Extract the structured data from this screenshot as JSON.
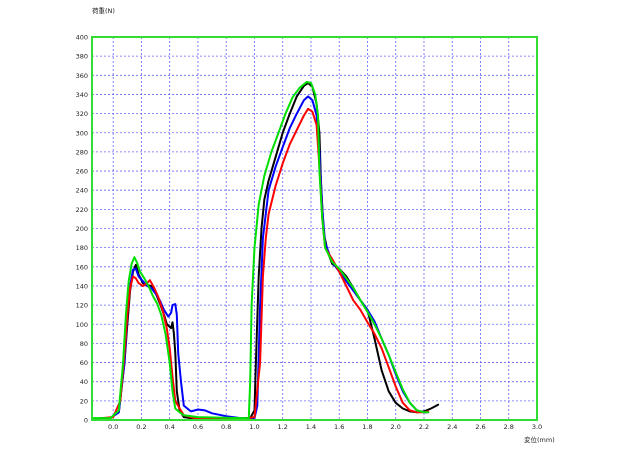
{
  "chart_data": {
    "type": "line",
    "ylabel": "荷重(N)",
    "xlabel": "変位(mm)",
    "xlim": [
      -0.15,
      3.0
    ],
    "ylim": [
      0,
      400
    ],
    "x_ticks": [
      "0.0",
      "0.2",
      "0.4",
      "0.6",
      "0.8",
      "1.0",
      "1.2",
      "1.4",
      "1.6",
      "1.8",
      "2.0",
      "2.2",
      "2.4",
      "2.6",
      "2.8",
      "3.0"
    ],
    "y_ticks": [
      "0",
      "20",
      "40",
      "60",
      "80",
      "100",
      "120",
      "140",
      "160",
      "180",
      "200",
      "220",
      "240",
      "260",
      "280",
      "300",
      "320",
      "340",
      "360",
      "380",
      "400"
    ],
    "grid": true,
    "legend": "none",
    "series": [
      {
        "color": "#000000",
        "points": [
          [
            -0.15,
            1
          ],
          [
            -0.02,
            2
          ],
          [
            0.04,
            8
          ],
          [
            0.08,
            60
          ],
          [
            0.1,
            100
          ],
          [
            0.12,
            135
          ],
          [
            0.14,
            155
          ],
          [
            0.16,
            162
          ],
          [
            0.18,
            152
          ],
          [
            0.21,
            143
          ],
          [
            0.24,
            141
          ],
          [
            0.27,
            140
          ],
          [
            0.3,
            133
          ],
          [
            0.33,
            122
          ],
          [
            0.36,
            110
          ],
          [
            0.38,
            100
          ],
          [
            0.41,
            96
          ],
          [
            0.42,
            102
          ],
          [
            0.43,
            90
          ],
          [
            0.44,
            70
          ],
          [
            0.45,
            30
          ],
          [
            0.47,
            10
          ],
          [
            0.5,
            3
          ],
          [
            0.55,
            2
          ],
          [
            0.7,
            1
          ],
          [
            0.9,
            1
          ],
          [
            0.97,
            2
          ],
          [
            1.0,
            10
          ],
          [
            1.01,
            60
          ],
          [
            1.03,
            150
          ],
          [
            1.05,
            200
          ],
          [
            1.07,
            230
          ],
          [
            1.1,
            250
          ],
          [
            1.15,
            275
          ],
          [
            1.2,
            300
          ],
          [
            1.25,
            320
          ],
          [
            1.3,
            338
          ],
          [
            1.35,
            349
          ],
          [
            1.38,
            352
          ],
          [
            1.41,
            348
          ],
          [
            1.44,
            330
          ],
          [
            1.46,
            300
          ],
          [
            1.47,
            250
          ],
          [
            1.49,
            195
          ],
          [
            1.52,
            175
          ],
          [
            1.55,
            163
          ],
          [
            1.6,
            158
          ],
          [
            1.65,
            150
          ],
          [
            1.7,
            138
          ],
          [
            1.75,
            125
          ],
          [
            1.8,
            115
          ],
          [
            1.85,
            85
          ],
          [
            1.9,
            52
          ],
          [
            1.95,
            30
          ],
          [
            2.0,
            18
          ],
          [
            2.05,
            12
          ],
          [
            2.1,
            9
          ],
          [
            2.15,
            8
          ],
          [
            2.2,
            9
          ],
          [
            2.25,
            12
          ],
          [
            2.3,
            16
          ]
        ]
      },
      {
        "color": "#0000ff",
        "points": [
          [
            -0.15,
            1
          ],
          [
            -0.02,
            2
          ],
          [
            0.04,
            8
          ],
          [
            0.08,
            60
          ],
          [
            0.1,
            110
          ],
          [
            0.12,
            140
          ],
          [
            0.14,
            157
          ],
          [
            0.16,
            158
          ],
          [
            0.18,
            150
          ],
          [
            0.21,
            145
          ],
          [
            0.24,
            140
          ],
          [
            0.27,
            138
          ],
          [
            0.3,
            132
          ],
          [
            0.33,
            125
          ],
          [
            0.36,
            115
          ],
          [
            0.39,
            108
          ],
          [
            0.41,
            112
          ],
          [
            0.42,
            120
          ],
          [
            0.44,
            121
          ],
          [
            0.45,
            110
          ],
          [
            0.46,
            70
          ],
          [
            0.48,
            40
          ],
          [
            0.5,
            15
          ],
          [
            0.55,
            9
          ],
          [
            0.6,
            11
          ],
          [
            0.65,
            10
          ],
          [
            0.7,
            7
          ],
          [
            0.8,
            4
          ],
          [
            0.9,
            2
          ],
          [
            0.96,
            2
          ],
          [
            1.0,
            2
          ],
          [
            1.02,
            15
          ],
          [
            1.04,
            120
          ],
          [
            1.06,
            190
          ],
          [
            1.1,
            240
          ],
          [
            1.15,
            265
          ],
          [
            1.2,
            285
          ],
          [
            1.25,
            305
          ],
          [
            1.3,
            320
          ],
          [
            1.35,
            334
          ],
          [
            1.38,
            338
          ],
          [
            1.41,
            334
          ],
          [
            1.44,
            318
          ],
          [
            1.46,
            280
          ],
          [
            1.48,
            220
          ],
          [
            1.5,
            185
          ],
          [
            1.55,
            165
          ],
          [
            1.6,
            155
          ],
          [
            1.65,
            145
          ],
          [
            1.7,
            135
          ],
          [
            1.75,
            125
          ],
          [
            1.8,
            115
          ],
          [
            1.85,
            103
          ],
          [
            1.9,
            85
          ],
          [
            1.95,
            68
          ],
          [
            2.0,
            48
          ],
          [
            2.05,
            30
          ],
          [
            2.1,
            18
          ],
          [
            2.15,
            10
          ],
          [
            2.2,
            8
          ],
          [
            2.23,
            8
          ]
        ]
      },
      {
        "color": "#ff0000",
        "points": [
          [
            -0.15,
            1
          ],
          [
            0.0,
            3
          ],
          [
            0.05,
            20
          ],
          [
            0.08,
            70
          ],
          [
            0.1,
            110
          ],
          [
            0.12,
            138
          ],
          [
            0.14,
            150
          ],
          [
            0.16,
            148
          ],
          [
            0.18,
            143
          ],
          [
            0.21,
            140
          ],
          [
            0.24,
            143
          ],
          [
            0.26,
            146
          ],
          [
            0.29,
            138
          ],
          [
            0.32,
            128
          ],
          [
            0.35,
            115
          ],
          [
            0.38,
            95
          ],
          [
            0.4,
            75
          ],
          [
            0.42,
            45
          ],
          [
            0.44,
            20
          ],
          [
            0.47,
            12
          ],
          [
            0.5,
            5
          ],
          [
            0.55,
            3
          ],
          [
            0.6,
            1
          ],
          [
            0.9,
            1
          ],
          [
            1.0,
            3
          ],
          [
            1.04,
            60
          ],
          [
            1.06,
            150
          ],
          [
            1.08,
            190
          ],
          [
            1.1,
            215
          ],
          [
            1.15,
            245
          ],
          [
            1.2,
            268
          ],
          [
            1.25,
            288
          ],
          [
            1.3,
            303
          ],
          [
            1.35,
            318
          ],
          [
            1.38,
            325
          ],
          [
            1.41,
            322
          ],
          [
            1.44,
            308
          ],
          [
            1.46,
            265
          ],
          [
            1.48,
            210
          ],
          [
            1.5,
            180
          ],
          [
            1.55,
            168
          ],
          [
            1.6,
            155
          ],
          [
            1.65,
            140
          ],
          [
            1.7,
            125
          ],
          [
            1.75,
            115
          ],
          [
            1.8,
            102
          ],
          [
            1.85,
            90
          ],
          [
            1.9,
            75
          ],
          [
            1.95,
            55
          ],
          [
            2.0,
            35
          ],
          [
            2.05,
            18
          ],
          [
            2.1,
            10
          ],
          [
            2.15,
            8
          ],
          [
            2.2,
            8
          ],
          [
            2.23,
            9
          ]
        ]
      },
      {
        "color": "#00e000",
        "points": [
          [
            -0.15,
            2
          ],
          [
            -0.02,
            2
          ],
          [
            0.04,
            10
          ],
          [
            0.07,
            60
          ],
          [
            0.09,
            110
          ],
          [
            0.11,
            145
          ],
          [
            0.13,
            163
          ],
          [
            0.15,
            170
          ],
          [
            0.17,
            164
          ],
          [
            0.19,
            155
          ],
          [
            0.22,
            148
          ],
          [
            0.25,
            140
          ],
          [
            0.28,
            130
          ],
          [
            0.31,
            122
          ],
          [
            0.34,
            110
          ],
          [
            0.37,
            90
          ],
          [
            0.4,
            60
          ],
          [
            0.42,
            30
          ],
          [
            0.44,
            12
          ],
          [
            0.47,
            8
          ],
          [
            0.5,
            5
          ],
          [
            0.6,
            3
          ],
          [
            0.9,
            2
          ],
          [
            0.96,
            2
          ],
          [
            0.97,
            40
          ],
          [
            0.98,
            120
          ],
          [
            1.0,
            180
          ],
          [
            1.03,
            225
          ],
          [
            1.07,
            255
          ],
          [
            1.12,
            280
          ],
          [
            1.17,
            300
          ],
          [
            1.22,
            320
          ],
          [
            1.27,
            337
          ],
          [
            1.32,
            347
          ],
          [
            1.37,
            353
          ],
          [
            1.4,
            352
          ],
          [
            1.43,
            340
          ],
          [
            1.45,
            318
          ],
          [
            1.46,
            260
          ],
          [
            1.48,
            210
          ],
          [
            1.5,
            180
          ],
          [
            1.55,
            165
          ],
          [
            1.6,
            158
          ],
          [
            1.65,
            148
          ],
          [
            1.7,
            138
          ],
          [
            1.75,
            125
          ],
          [
            1.8,
            113
          ],
          [
            1.85,
            100
          ],
          [
            1.9,
            85
          ],
          [
            1.95,
            68
          ],
          [
            2.0,
            50
          ],
          [
            2.05,
            32
          ],
          [
            2.1,
            18
          ],
          [
            2.15,
            10
          ],
          [
            2.2,
            8
          ],
          [
            2.23,
            8
          ]
        ]
      }
    ]
  }
}
